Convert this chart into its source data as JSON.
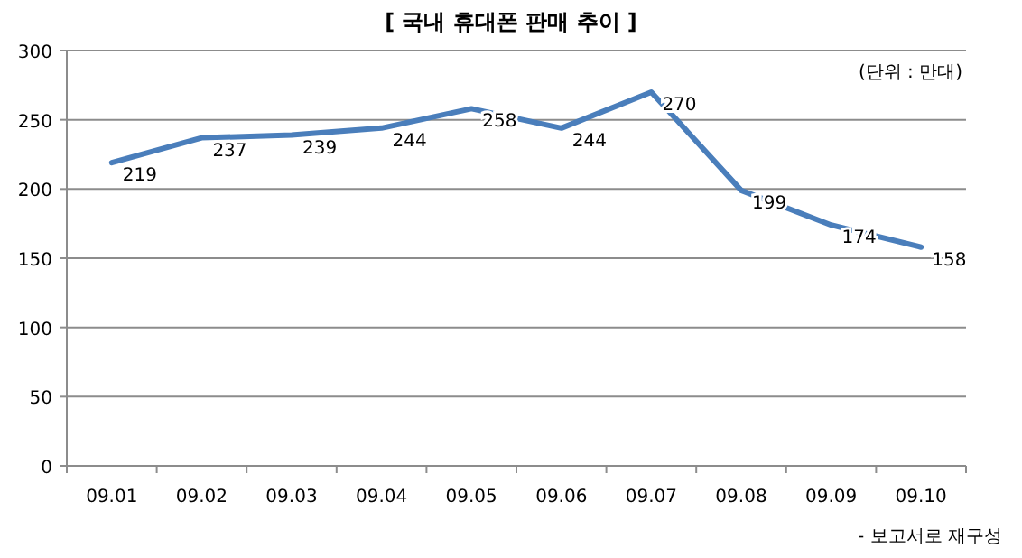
{
  "chart_data": {
    "type": "line",
    "title": "[ 국내 휴대폰 판매 추이 ]",
    "categories": [
      "09.01",
      "09.02",
      "09.03",
      "09.04",
      "09.05",
      "09.06",
      "09.07",
      "09.08",
      "09.09",
      "09.10"
    ],
    "series": [
      {
        "color": "#4a7ebb",
        "values": [
          219,
          237,
          239,
          244,
          258,
          244,
          270,
          199,
          174,
          158
        ]
      }
    ],
    "ylim": [
      0,
      300
    ],
    "yticks": [
      0,
      50,
      100,
      150,
      200,
      250,
      300
    ],
    "grid": "y",
    "data_labels": true,
    "annotations": [
      "(단위 : 만대)",
      "- 보고서로 재구성"
    ]
  }
}
